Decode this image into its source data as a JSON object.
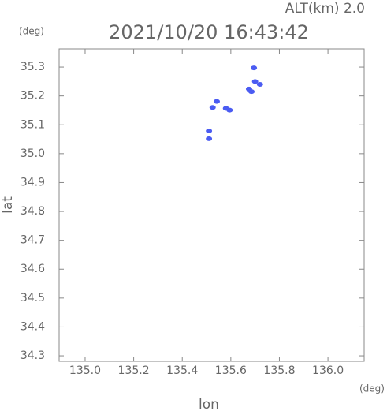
{
  "chart_data": {
    "type": "scatter",
    "title": "2021/10/20 16:43:42",
    "subtitle": "ALT(km) 2.0",
    "y_unit": "(deg)",
    "x_unit": "(deg)",
    "x_label": "lon",
    "y_label": "lat",
    "x": [
      135.695,
      135.7,
      135.675,
      135.72,
      135.685,
      135.542,
      135.58,
      135.595,
      135.51,
      135.51,
      135.525
    ],
    "values": [
      35.297,
      35.25,
      35.224,
      35.24,
      35.215,
      35.181,
      35.157,
      35.151,
      35.079,
      35.052,
      35.16
    ],
    "color": "#4b5cf2",
    "xlim": [
      134.893,
      136.149
    ],
    "ylim": [
      34.281,
      35.363
    ],
    "xticks": [
      {
        "value": 135,
        "label": "135.0"
      },
      135.2,
      135.4,
      135.6,
      135.8,
      {
        "value": 136,
        "label": "136.0"
      }
    ],
    "yticks": [
      34.3,
      34.4,
      34.5,
      34.6,
      34.7,
      34.8,
      34.9,
      {
        "value": 35,
        "label": "35.0"
      },
      35.1,
      35.2,
      35.3
    ]
  }
}
